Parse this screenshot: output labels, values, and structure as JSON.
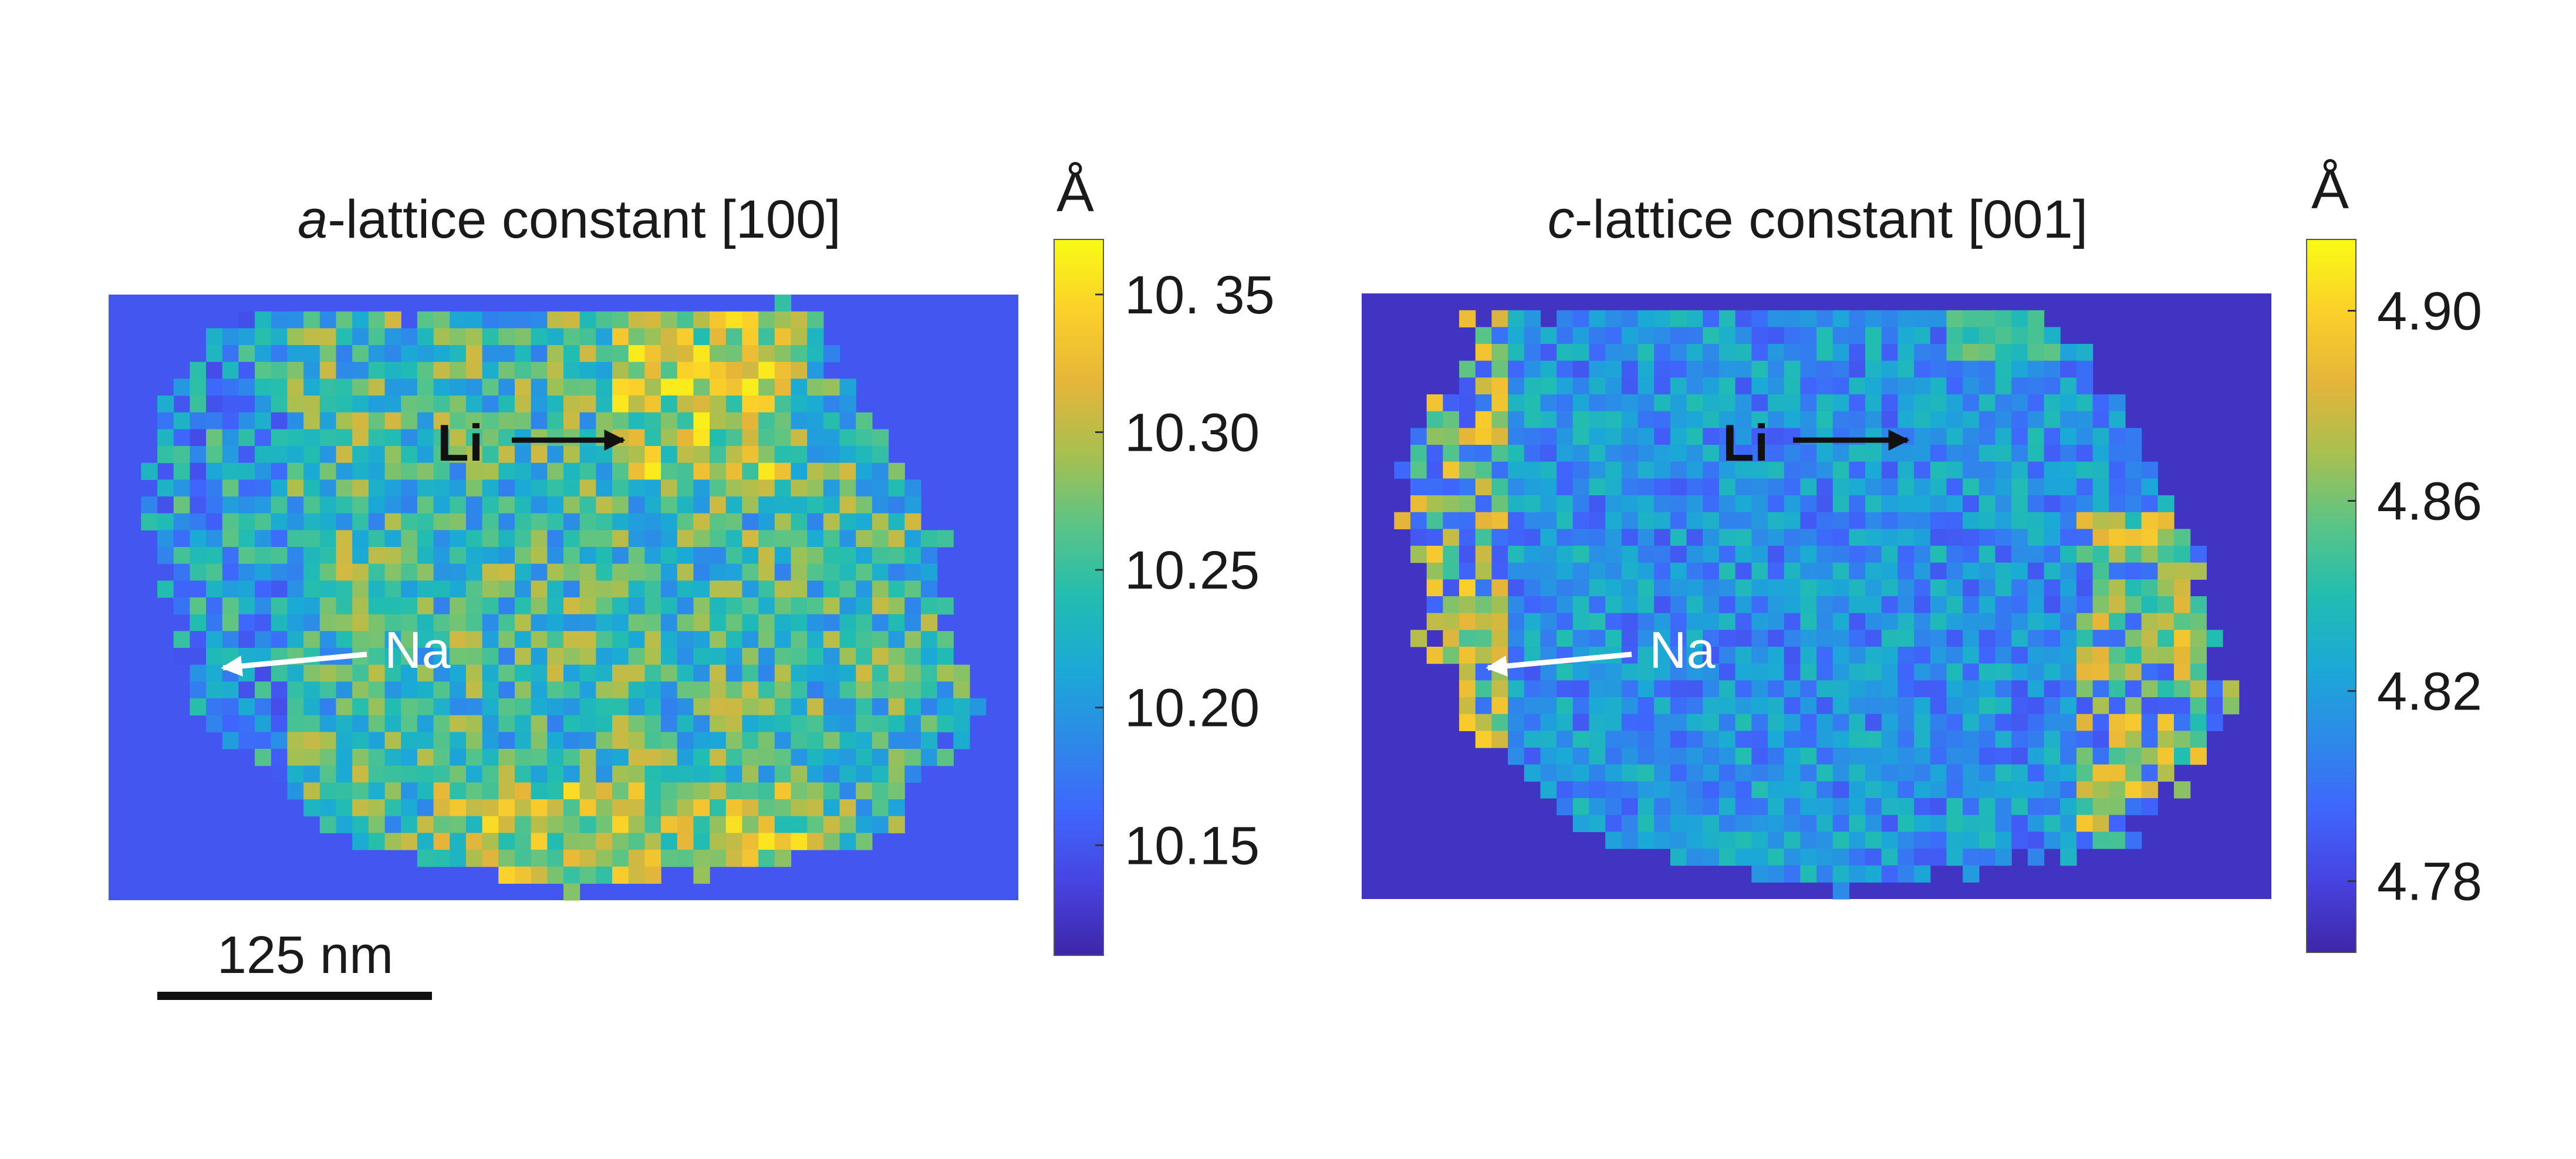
{
  "chart_data": [
    {
      "type": "heatmap",
      "title_italic": "a",
      "title_rest": "-lattice constant [100]",
      "colorbar": {
        "unit": "Å",
        "ticks": [
          "10.15",
          "10.20",
          "10.25",
          "10.30",
          "10. 35"
        ],
        "range": [
          10.11,
          10.37
        ]
      },
      "background_value": 10.15,
      "pattern": "a",
      "annotations": [
        {
          "label": "Li",
          "color": "#111111",
          "direction": "right"
        },
        {
          "label": "Na",
          "color": "#ffffff",
          "direction": "left"
        }
      ],
      "scale_bar": {
        "label": "125 nm"
      }
    },
    {
      "type": "heatmap",
      "title_italic": "c",
      "title_rest": "-lattice constant [001]",
      "colorbar": {
        "unit": "Å",
        "ticks": [
          "4.78",
          "4.82",
          "4.86",
          "4.90"
        ],
        "range": [
          4.765,
          4.915
        ]
      },
      "background_value": 4.772,
      "pattern": "c",
      "annotations": [
        {
          "label": "Li",
          "color": "#111111",
          "direction": "right"
        },
        {
          "label": "Na",
          "color": "#ffffff",
          "direction": "left"
        }
      ]
    }
  ],
  "colormap": [
    "#3e26a8",
    "#4743e0",
    "#3f66fc",
    "#2d8ae8",
    "#1ba9d6",
    "#22bdb1",
    "#5ac486",
    "#a8c050",
    "#e5b53a",
    "#fbd02a",
    "#f9fb15"
  ]
}
